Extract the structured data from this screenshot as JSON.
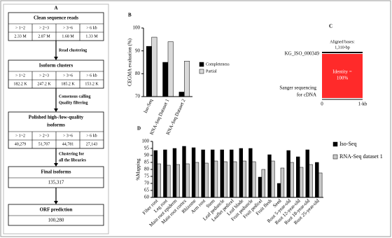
{
  "flowchart": {
    "label": "A",
    "bins": [
      "> 1~2",
      "> 2~3",
      "> 3~6",
      "> 6 kb"
    ],
    "stages": [
      {
        "title": [
          "Clean sequence reads"
        ],
        "values": [
          "2.33 M",
          "2.87 M",
          "1.68 M",
          "1.33 M"
        ]
      },
      {
        "title": [
          "Isoform clusters"
        ],
        "values": [
          "182.2 K",
          "247.2 K",
          "185.2 K",
          "153.2 K"
        ]
      },
      {
        "title": [
          "Polished  high-/low-quality",
          "isoforms"
        ],
        "values": [
          "40,279",
          "51,707",
          "44,781",
          "27,143"
        ]
      },
      {
        "title": [
          "Final isoforms"
        ],
        "value": "135,317"
      },
      {
        "title": [
          "ORF prediction"
        ],
        "value": "100,280"
      }
    ],
    "steps": [
      [
        "Read clustering"
      ],
      [
        "Consensus calling",
        "Quality filtering"
      ],
      [
        "Clustering for",
        "all the libraries"
      ],
      []
    ]
  },
  "alignment": {
    "label": "C",
    "isoform": "KG_ISO_000349",
    "aligned": [
      "Aligned bases:",
      "1,310-bp"
    ],
    "identity": [
      "Identity =",
      "100%"
    ],
    "reference": [
      "Sanger sequencing",
      "for cDNA"
    ],
    "axis": [
      "0",
      "1-kb"
    ]
  },
  "chart_data": [
    {
      "type": "bar",
      "label": "B",
      "ylabel": "CEGMA evaluation (%)",
      "categories": [
        "Iso-Seq",
        "RNA-Seq Dataset 1",
        "RNA-Seq Dataset 2"
      ],
      "series": [
        {
          "name": "Completeness",
          "color": "#000000",
          "values": [
            92,
            85,
            72
          ]
        },
        {
          "name": "Partial",
          "color": "#d9d9d9",
          "values": [
            96,
            94,
            85.5
          ]
        }
      ],
      "ylim": [
        70,
        100
      ],
      "yticks": [
        70,
        80,
        90,
        100
      ],
      "legend": "right"
    },
    {
      "type": "bar",
      "label": "D",
      "ylabel": "%Mapping",
      "categories": [
        "Fiber root",
        "Leg root",
        "Main root epiderm",
        "Main root cortex",
        "Rhizome",
        "Arm root",
        "Stem",
        "Leaf peduncle",
        "Leaflet pedicel",
        "Leaf blade",
        "Fruit peduncle",
        "Fruit pedicel",
        "Fruit flesh",
        "Seed",
        "Root 5-year-old",
        "Root 12-year-old",
        "Root 18-year-old",
        "Root 25-year-old"
      ],
      "series": [
        {
          "name": "Iso-Seq",
          "color": "#000000",
          "values": [
            93.5,
            94,
            95,
            96.5,
            95.5,
            94,
            94,
            94,
            94,
            95,
            95,
            74.5,
            90.5,
            70,
            93.5,
            89,
            94,
            85
          ]
        },
        {
          "name": "RNA-Seq dataset 1",
          "color": "#c8c8c8",
          "values": [
            84,
            83,
            83.5,
            84,
            85,
            84.5,
            86,
            85.5,
            85.5,
            86,
            85.5,
            80,
            86,
            81,
            85,
            81.5,
            83.5,
            77.5
          ]
        }
      ],
      "ylim": [
        60,
        100
      ],
      "yticks": [
        60,
        65,
        70,
        75,
        80,
        85,
        90,
        95,
        100
      ],
      "legend": "right"
    }
  ]
}
